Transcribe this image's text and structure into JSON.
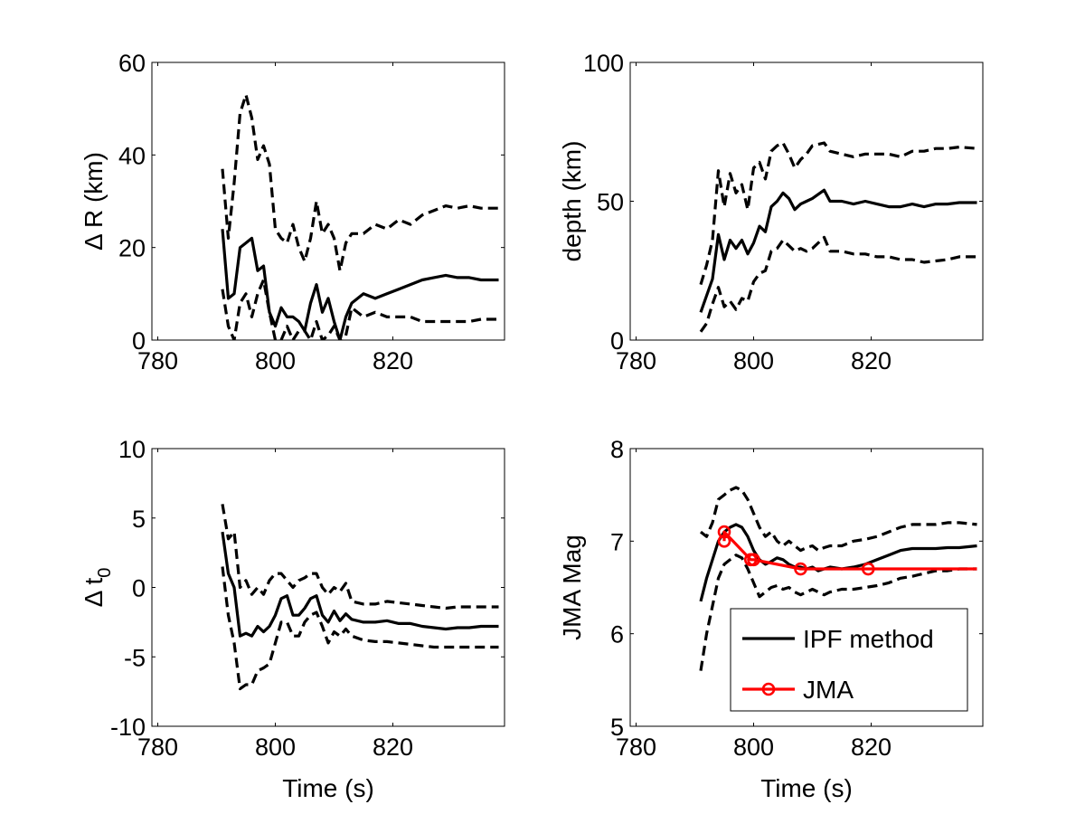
{
  "chart_data": [
    {
      "type": "line",
      "id": "delta-r",
      "title": "",
      "xlabel": "",
      "ylabel": "Δ R (km)",
      "xlim": [
        779,
        839
      ],
      "ylim": [
        0,
        60
      ],
      "xticks": [
        780,
        800,
        820
      ],
      "yticks": [
        0,
        20,
        40,
        60
      ],
      "grid": false,
      "series": [
        {
          "role": "mean",
          "color": "#000000",
          "dash": "solid",
          "x": [
            791,
            792,
            793,
            794,
            795,
            796,
            797,
            798,
            799,
            800,
            801,
            802,
            803,
            804,
            805,
            806,
            807,
            808,
            809,
            810,
            811,
            812,
            813,
            815,
            817,
            819,
            821,
            823,
            825,
            827,
            829,
            831,
            833,
            835,
            838
          ],
          "y": [
            24,
            9,
            10,
            20,
            21,
            22,
            15,
            16,
            6,
            3,
            7,
            5,
            5,
            4,
            2,
            8,
            12,
            6,
            9,
            4,
            0,
            5,
            8,
            10,
            9,
            10,
            11,
            12,
            13,
            13.5,
            14,
            13.5,
            13.5,
            13,
            13
          ]
        },
        {
          "role": "upper",
          "color": "#000000",
          "dash": "dashed",
          "x": [
            791,
            792,
            793,
            794,
            795,
            796,
            797,
            798,
            799,
            800,
            801,
            802,
            803,
            804,
            805,
            806,
            807,
            808,
            809,
            810,
            811,
            812,
            813,
            815,
            817,
            819,
            821,
            823,
            825,
            827,
            829,
            831,
            833,
            835,
            838
          ],
          "y": [
            37,
            22,
            34,
            49,
            53,
            48,
            39,
            42,
            38,
            24,
            22,
            21,
            25,
            20,
            17,
            22,
            30,
            23,
            25,
            22,
            15,
            21,
            23,
            23,
            25,
            24,
            26,
            25,
            27,
            28,
            29,
            28.5,
            29,
            28.5,
            28.5
          ]
        },
        {
          "role": "lower",
          "color": "#000000",
          "dash": "dashed",
          "x": [
            791,
            792,
            793,
            794,
            795,
            796,
            797,
            798,
            799,
            800,
            801,
            802,
            803,
            804,
            805,
            806,
            807,
            808,
            809,
            810,
            811,
            812,
            813,
            815,
            817,
            819,
            821,
            823,
            825,
            827,
            829,
            831,
            833,
            835,
            838
          ],
          "y": [
            11,
            3,
            0,
            8,
            10,
            5,
            10,
            13,
            6,
            0,
            0,
            3,
            0,
            2,
            2,
            0,
            4,
            0,
            1,
            3,
            0,
            1,
            7,
            5,
            6,
            5,
            5,
            5,
            4,
            4,
            4,
            4,
            4,
            4.5,
            4.5
          ]
        }
      ]
    },
    {
      "type": "line",
      "id": "depth",
      "title": "",
      "xlabel": "",
      "ylabel": "depth (km)",
      "xlim": [
        779,
        839
      ],
      "ylim": [
        0,
        100
      ],
      "xticks": [
        780,
        800,
        820
      ],
      "yticks": [
        0,
        50,
        100
      ],
      "grid": false,
      "series": [
        {
          "role": "mean",
          "color": "#000000",
          "dash": "solid",
          "x": [
            791,
            792,
            793,
            794,
            795,
            796,
            797,
            798,
            799,
            800,
            801,
            802,
            803,
            804,
            805,
            806,
            807,
            808,
            809,
            810,
            812,
            813,
            815,
            817,
            819,
            821,
            823,
            825,
            827,
            829,
            831,
            833,
            835,
            838
          ],
          "y": [
            10,
            16,
            22,
            38,
            29,
            36,
            33,
            36,
            31,
            35,
            41,
            39,
            48,
            50,
            53,
            51,
            47,
            49,
            50,
            51,
            54,
            50,
            50,
            49,
            50,
            49,
            48,
            48,
            49,
            48,
            49,
            49,
            49.5,
            49.5
          ]
        },
        {
          "role": "upper",
          "color": "#000000",
          "dash": "dashed",
          "x": [
            791,
            792,
            793,
            794,
            795,
            796,
            797,
            798,
            799,
            800,
            801,
            802,
            803,
            804,
            805,
            806,
            807,
            808,
            809,
            810,
            812,
            813,
            815,
            817,
            819,
            821,
            823,
            825,
            827,
            829,
            831,
            833,
            835,
            838
          ],
          "y": [
            20,
            27,
            36,
            61,
            48,
            60,
            53,
            56,
            47,
            62,
            64,
            58,
            68,
            70,
            71,
            67,
            62,
            65,
            67,
            70,
            71,
            68,
            67,
            66,
            67,
            67,
            67,
            66,
            68,
            68,
            69,
            69,
            69.5,
            69
          ]
        },
        {
          "role": "lower",
          "color": "#000000",
          "dash": "dashed",
          "x": [
            791,
            792,
            793,
            794,
            795,
            796,
            797,
            798,
            799,
            800,
            801,
            802,
            803,
            804,
            805,
            806,
            807,
            808,
            809,
            810,
            812,
            813,
            815,
            817,
            819,
            821,
            823,
            825,
            827,
            829,
            831,
            833,
            835,
            838
          ],
          "y": [
            3,
            6,
            13,
            19,
            12,
            14,
            11,
            15,
            14,
            21,
            24,
            25,
            32,
            33,
            36,
            34,
            32,
            33,
            32,
            33,
            37,
            32,
            32,
            31,
            31,
            30,
            30,
            29,
            29,
            28,
            28.5,
            29,
            30,
            30
          ]
        }
      ]
    },
    {
      "type": "line",
      "id": "delta-t0",
      "title": "",
      "xlabel": "Time (s)",
      "ylabel_main": "Δ t",
      "ylabel_sub": "0",
      "xlim": [
        779,
        839
      ],
      "ylim": [
        -10,
        10
      ],
      "xticks": [
        780,
        800,
        820
      ],
      "yticks": [
        -10,
        -5,
        0,
        5,
        10
      ],
      "grid": false,
      "series": [
        {
          "role": "mean",
          "color": "#000000",
          "dash": "solid",
          "x": [
            791,
            792,
            793,
            794,
            795,
            796,
            797,
            798,
            799,
            800,
            801,
            802,
            803,
            804,
            805,
            806,
            807,
            808,
            809,
            810,
            811,
            812,
            813,
            815,
            817,
            819,
            821,
            823,
            825,
            827,
            829,
            831,
            833,
            835,
            838
          ],
          "y": [
            4,
            1,
            0,
            -3.5,
            -3.3,
            -3.5,
            -2.8,
            -3.2,
            -2.8,
            -2,
            -0.8,
            -0.6,
            -2,
            -2,
            -1.5,
            -0.8,
            -0.6,
            -2,
            -2.5,
            -1.7,
            -2.4,
            -1.9,
            -2.3,
            -2.5,
            -2.5,
            -2.4,
            -2.6,
            -2.6,
            -2.8,
            -2.9,
            -3,
            -2.9,
            -2.9,
            -2.8,
            -2.8
          ]
        },
        {
          "role": "upper",
          "color": "#000000",
          "dash": "dashed",
          "x": [
            791,
            792,
            793,
            794,
            795,
            796,
            797,
            798,
            799,
            800,
            801,
            802,
            803,
            804,
            805,
            806,
            807,
            808,
            809,
            810,
            811,
            812,
            813,
            815,
            817,
            819,
            821,
            823,
            825,
            827,
            829,
            831,
            833,
            835,
            838
          ],
          "y": [
            6,
            3.5,
            4,
            0,
            0.5,
            -0.5,
            0,
            -0.5,
            0.5,
            1,
            1,
            0.5,
            0,
            0.5,
            0.7,
            1,
            1,
            0,
            -0.5,
            0,
            -0.3,
            0.3,
            -1,
            -1.2,
            -1.2,
            -1,
            -1.1,
            -1.2,
            -1.3,
            -1.4,
            -1.5,
            -1.4,
            -1.4,
            -1.4,
            -1.4
          ]
        },
        {
          "role": "lower",
          "color": "#000000",
          "dash": "dashed",
          "x": [
            791,
            792,
            793,
            794,
            795,
            796,
            797,
            798,
            799,
            800,
            801,
            802,
            803,
            804,
            805,
            806,
            807,
            808,
            809,
            810,
            811,
            812,
            813,
            815,
            817,
            819,
            821,
            823,
            825,
            827,
            829,
            831,
            833,
            835,
            838
          ],
          "y": [
            1.5,
            -2,
            -4,
            -7.3,
            -7,
            -7,
            -6,
            -5.8,
            -5.5,
            -4,
            -2.5,
            -2.5,
            -3.5,
            -3.5,
            -2.5,
            -2,
            -1.8,
            -2.8,
            -4,
            -3.2,
            -3.5,
            -3,
            -3.5,
            -3.8,
            -3.9,
            -3.9,
            -4,
            -4.1,
            -4.2,
            -4.3,
            -4.3,
            -4.3,
            -4.3,
            -4.3,
            -4.3
          ]
        }
      ]
    },
    {
      "type": "line",
      "id": "jma-mag",
      "title": "",
      "xlabel": "Time (s)",
      "ylabel": "JMA Mag",
      "xlim": [
        779,
        839
      ],
      "ylim": [
        5,
        8
      ],
      "xticks": [
        780,
        800,
        820
      ],
      "yticks": [
        5,
        6,
        7,
        8
      ],
      "grid": false,
      "legend_position": "bottom-right",
      "series": [
        {
          "name": "IPF method",
          "role": "mean",
          "color": "#000000",
          "dash": "solid",
          "legend": true,
          "x": [
            791,
            792,
            793,
            794,
            795,
            796,
            797,
            798,
            799,
            800,
            801,
            802,
            803,
            804,
            805,
            806,
            807,
            808,
            809,
            810,
            811,
            812,
            813,
            815,
            817,
            819,
            821,
            823,
            825,
            827,
            829,
            831,
            833,
            835,
            838
          ],
          "y": [
            6.35,
            6.6,
            6.8,
            7.0,
            7.1,
            7.15,
            7.18,
            7.15,
            7.05,
            6.9,
            6.8,
            6.75,
            6.78,
            6.82,
            6.8,
            6.75,
            6.72,
            6.72,
            6.7,
            6.72,
            6.68,
            6.7,
            6.72,
            6.7,
            6.72,
            6.75,
            6.8,
            6.85,
            6.9,
            6.92,
            6.92,
            6.92,
            6.93,
            6.93,
            6.95
          ]
        },
        {
          "role": "upper",
          "color": "#000000",
          "dash": "dashed",
          "legend": false,
          "x": [
            791,
            792,
            793,
            794,
            795,
            796,
            797,
            798,
            799,
            800,
            801,
            802,
            803,
            804,
            805,
            806,
            807,
            808,
            809,
            810,
            811,
            812,
            813,
            815,
            817,
            819,
            821,
            823,
            825,
            827,
            829,
            831,
            833,
            835,
            838
          ],
          "y": [
            7.1,
            7.05,
            7.2,
            7.45,
            7.5,
            7.55,
            7.58,
            7.55,
            7.45,
            7.3,
            7.15,
            7.05,
            7.1,
            7.0,
            6.95,
            7.0,
            6.95,
            6.9,
            6.93,
            6.95,
            6.9,
            6.93,
            6.95,
            6.95,
            7.0,
            7.02,
            7.05,
            7.1,
            7.15,
            7.18,
            7.18,
            7.18,
            7.2,
            7.2,
            7.18
          ]
        },
        {
          "role": "lower",
          "color": "#000000",
          "dash": "dashed",
          "legend": false,
          "x": [
            791,
            792,
            793,
            794,
            795,
            796,
            797,
            798,
            799,
            800,
            801,
            802,
            803,
            804,
            805,
            806,
            807,
            808,
            809,
            810,
            811,
            812,
            813,
            815,
            817,
            819,
            821,
            823,
            825,
            827,
            829,
            831,
            833,
            835,
            838
          ],
          "y": [
            5.6,
            6.0,
            6.3,
            6.6,
            6.75,
            6.8,
            6.85,
            6.82,
            6.7,
            6.55,
            6.4,
            6.45,
            6.5,
            6.52,
            6.48,
            6.5,
            6.45,
            6.42,
            6.45,
            6.48,
            6.45,
            6.42,
            6.45,
            6.48,
            6.48,
            6.5,
            6.52,
            6.55,
            6.6,
            6.62,
            6.65,
            6.68,
            6.68,
            6.7,
            6.7
          ]
        },
        {
          "name": "JMA",
          "role": "reference",
          "color": "#ff0000",
          "dash": "solid",
          "markers": "circle",
          "legend": true,
          "x": [
            795,
            795,
            799.5,
            800,
            808,
            819.5,
            838
          ],
          "y": [
            7.0,
            7.1,
            6.8,
            6.8,
            6.7,
            6.7,
            6.7
          ],
          "marker_x": [
            795,
            795,
            799.5,
            800,
            808,
            819.5
          ],
          "marker_y": [
            7.0,
            7.1,
            6.8,
            6.8,
            6.7,
            6.7
          ]
        }
      ]
    }
  ]
}
